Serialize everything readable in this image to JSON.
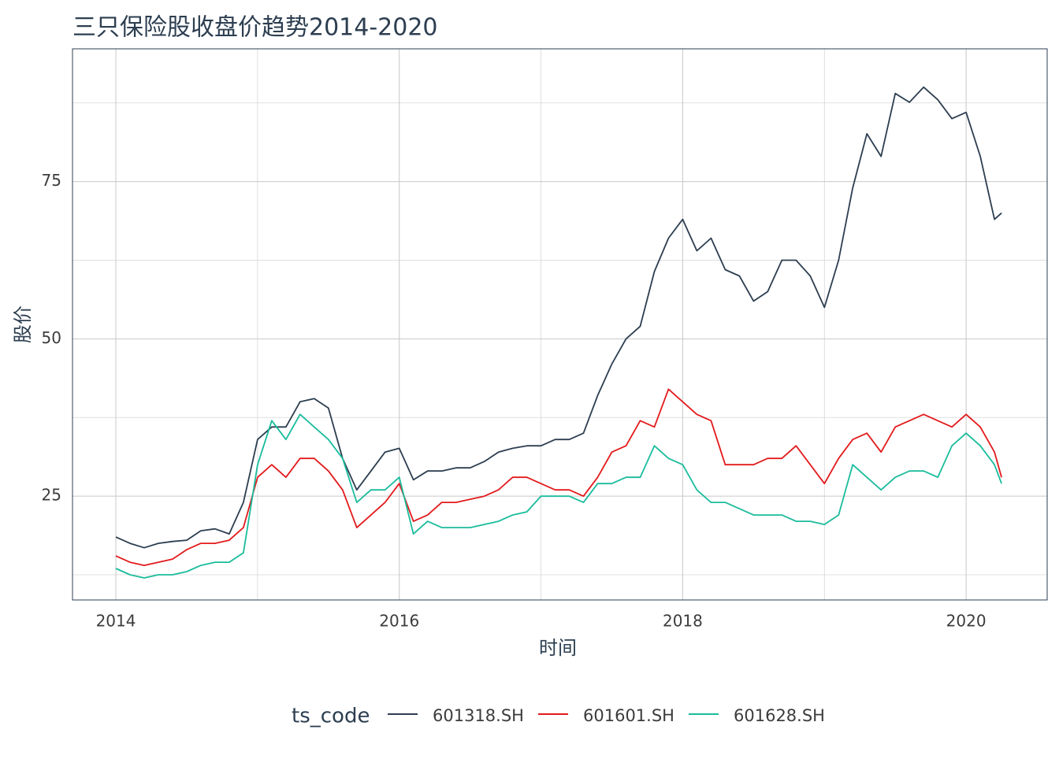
{
  "chart_data": {
    "type": "line",
    "title": "三只保险股收盘价趋势2014-2020",
    "x_label": "时间",
    "y_label": "股价",
    "legend_title": "ts_code",
    "x": [
      2014.0,
      2014.1,
      2014.2,
      2014.3,
      2014.4,
      2014.5,
      2014.6,
      2014.7,
      2014.8,
      2014.9,
      2015.0,
      2015.1,
      2015.2,
      2015.3,
      2015.4,
      2015.5,
      2015.6,
      2015.7,
      2015.8,
      2015.9,
      2016.0,
      2016.1,
      2016.2,
      2016.3,
      2016.4,
      2016.5,
      2016.6,
      2016.7,
      2016.8,
      2016.9,
      2017.0,
      2017.1,
      2017.2,
      2017.3,
      2017.4,
      2017.5,
      2017.6,
      2017.7,
      2017.8,
      2017.9,
      2018.0,
      2018.1,
      2018.2,
      2018.3,
      2018.4,
      2018.5,
      2018.6,
      2018.7,
      2018.8,
      2018.9,
      2019.0,
      2019.1,
      2019.2,
      2019.3,
      2019.4,
      2019.5,
      2019.6,
      2019.7,
      2019.8,
      2019.9,
      2020.0,
      2020.1,
      2020.2,
      2020.25
    ],
    "series": [
      {
        "name": "601318.SH",
        "color": "#2c3e50",
        "values": [
          18.5,
          17.5,
          16.8,
          17.5,
          17.8,
          18,
          19.5,
          19.8,
          19,
          24,
          34,
          36,
          36,
          40,
          40.5,
          39,
          31,
          26,
          29,
          32,
          32.6,
          27.6,
          29,
          29,
          29.5,
          29.5,
          30.5,
          32,
          32.6,
          33,
          33,
          34,
          34,
          35,
          41,
          46,
          50,
          52,
          60.7,
          66,
          69,
          64,
          66,
          61,
          60,
          56,
          57.5,
          62.5,
          62.5,
          60,
          55,
          62.5,
          74,
          82.6,
          79,
          89,
          87.6,
          90,
          88,
          85,
          86,
          79,
          69,
          70
        ]
      },
      {
        "name": "601601.SH",
        "color": "#e31a1c",
        "values": [
          15.5,
          14.5,
          14,
          14.5,
          15,
          16.5,
          17.5,
          17.5,
          18,
          20,
          28,
          30,
          28,
          31,
          31,
          29,
          26,
          20,
          22,
          24,
          27,
          21,
          22,
          24,
          24,
          24.5,
          25,
          26,
          28,
          28,
          27,
          26,
          26,
          25,
          28,
          32,
          33,
          37,
          36,
          42,
          40,
          38,
          37,
          30,
          30,
          30,
          31,
          31,
          33,
          30,
          27,
          31,
          34,
          35,
          32,
          36,
          37,
          38,
          37,
          36,
          38,
          36,
          32,
          28
        ]
      },
      {
        "name": "601628.SH",
        "color": "#1abc9c",
        "values": [
          13.5,
          12.5,
          12,
          12.5,
          12.5,
          13,
          14,
          14.5,
          14.5,
          16,
          30,
          37,
          34,
          38,
          36,
          34,
          31,
          24,
          26,
          26,
          28,
          19,
          21,
          20,
          20,
          20,
          20.5,
          21,
          22,
          22.5,
          25,
          25,
          25,
          24,
          27,
          27,
          28,
          28,
          33,
          31,
          30,
          26,
          24,
          24,
          23,
          22,
          22,
          22,
          21,
          21,
          20.5,
          22,
          30,
          28,
          26,
          28,
          29,
          29,
          28,
          33,
          35,
          33,
          30,
          27
        ]
      }
    ],
    "xlim": [
      2013.694,
      2020.572
    ],
    "xticks": [
      2014,
      2016,
      2018,
      2020
    ],
    "ylim": [
      8.5,
      96.1
    ],
    "yticks": [
      25,
      50,
      75
    ],
    "minor_xticks": [
      2015,
      2017,
      2019
    ],
    "minor_yticks": [
      12.5,
      37.5,
      62.5,
      87.5
    ],
    "grid": true,
    "legend": "bottom"
  }
}
